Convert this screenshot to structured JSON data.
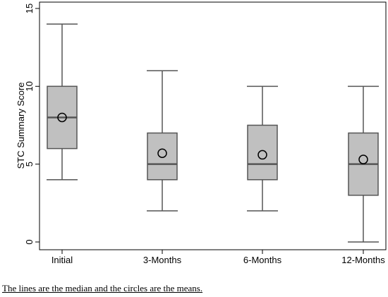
{
  "chart_data": {
    "type": "box",
    "categories": [
      "Initial",
      "3-Months",
      "6-Months",
      "12-Months"
    ],
    "boxes": [
      {
        "category": "Initial",
        "min": 4,
        "q1": 6,
        "median": 8,
        "q3": 10,
        "max": 14,
        "mean": 8.0
      },
      {
        "category": "3-Months",
        "min": 2,
        "q1": 4,
        "median": 5,
        "q3": 7,
        "max": 11,
        "mean": 5.7
      },
      {
        "category": "6-Months",
        "min": 2,
        "q1": 4,
        "median": 5,
        "q3": 7.5,
        "max": 10,
        "mean": 5.6
      },
      {
        "category": "12-Months",
        "min": 0,
        "q1": 3,
        "median": 5,
        "q3": 7,
        "max": 10,
        "mean": 5.3
      }
    ],
    "ylabel": "STC Summary Score",
    "xlabel": "",
    "ylim": [
      0,
      15
    ],
    "yticks": [
      0,
      5,
      10,
      15
    ],
    "grid": false,
    "colors": {
      "box_fill": "#c0c0c0",
      "stroke": "#555555",
      "median": "#555555",
      "mean_marker": "#000000"
    }
  },
  "caption": "The lines are the median and the circles are the means."
}
